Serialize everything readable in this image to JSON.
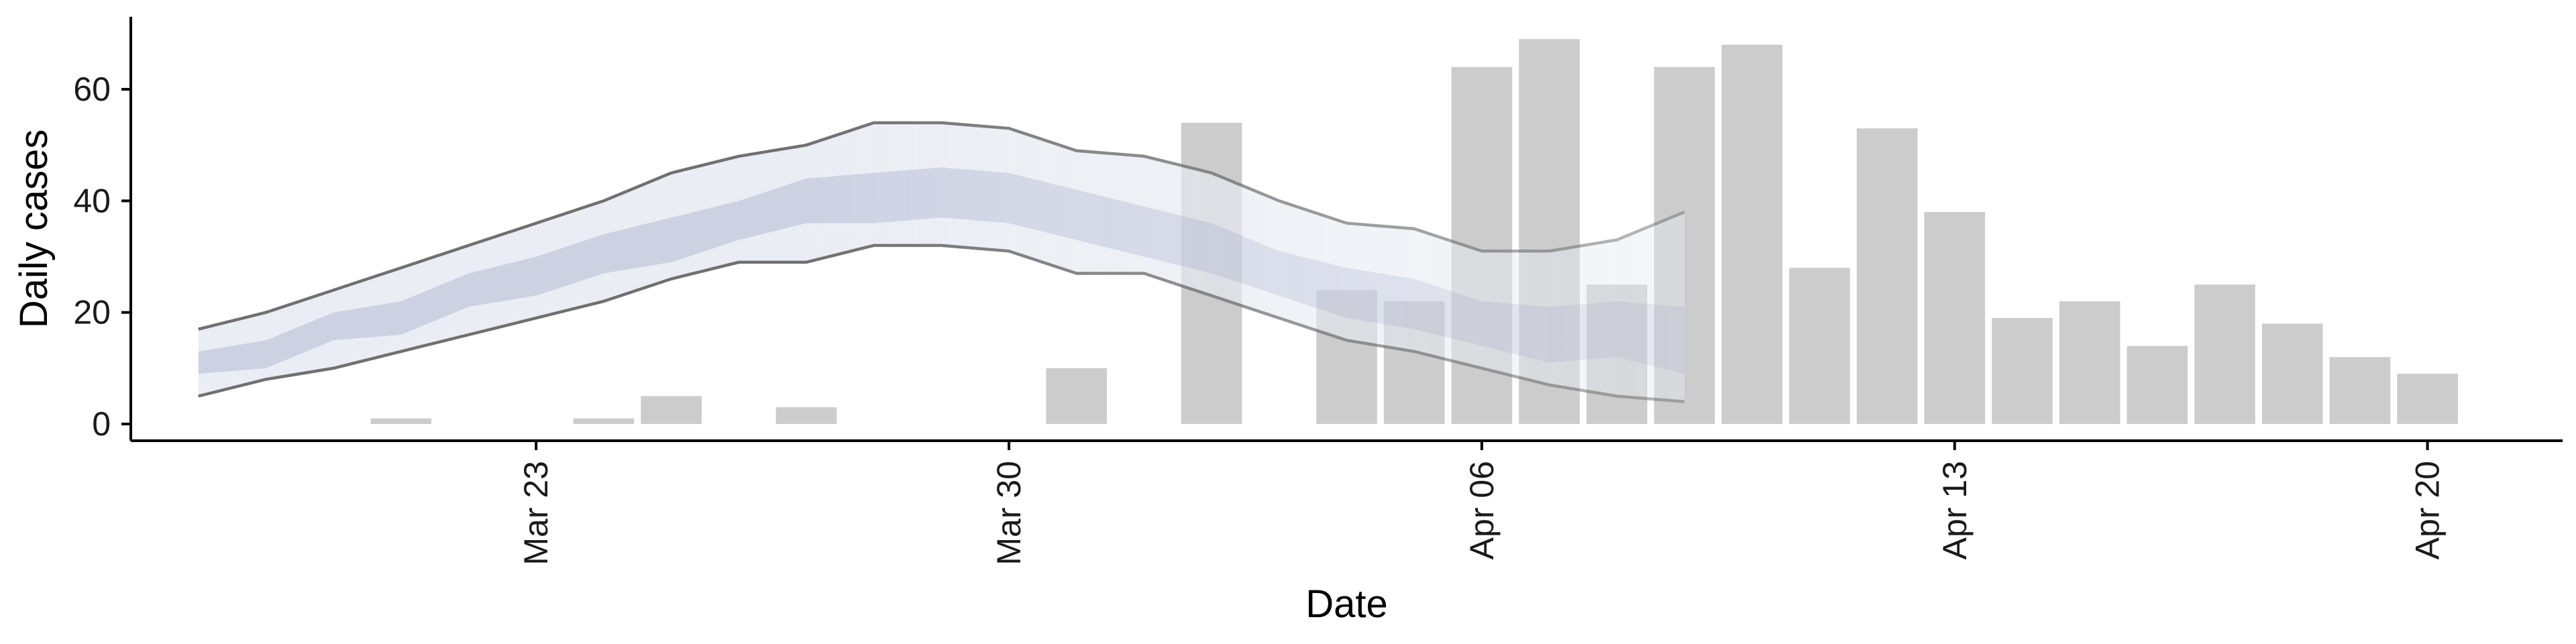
{
  "chart_data": {
    "type": "bar",
    "xlabel": "Date",
    "ylabel": "Daily cases",
    "ylim": [
      -3,
      73
    ],
    "yticks": [
      0,
      20,
      40,
      60
    ],
    "xlim_date": [
      "2020-03-17",
      "2020-04-22"
    ],
    "xticks": [
      {
        "date": "2020-03-23",
        "label": "Mar 23"
      },
      {
        "date": "2020-03-30",
        "label": "Mar 30"
      },
      {
        "date": "2020-04-06",
        "label": "Apr 06"
      },
      {
        "date": "2020-04-13",
        "label": "Apr 13"
      },
      {
        "date": "2020-04-20",
        "label": "Apr 20"
      }
    ],
    "bars": [
      {
        "date": "2020-03-21",
        "value": 1
      },
      {
        "date": "2020-03-24",
        "value": 1
      },
      {
        "date": "2020-03-25",
        "value": 5
      },
      {
        "date": "2020-03-27",
        "value": 3
      },
      {
        "date": "2020-03-31",
        "value": 10
      },
      {
        "date": "2020-04-02",
        "value": 54
      },
      {
        "date": "2020-04-04",
        "value": 24
      },
      {
        "date": "2020-04-05",
        "value": 22
      },
      {
        "date": "2020-04-06",
        "value": 64
      },
      {
        "date": "2020-04-07",
        "value": 69
      },
      {
        "date": "2020-04-08",
        "value": 25
      },
      {
        "date": "2020-04-09",
        "value": 64
      },
      {
        "date": "2020-04-10",
        "value": 68
      },
      {
        "date": "2020-04-11",
        "value": 28
      },
      {
        "date": "2020-04-12",
        "value": 53
      },
      {
        "date": "2020-04-13",
        "value": 38
      },
      {
        "date": "2020-04-14",
        "value": 19
      },
      {
        "date": "2020-04-15",
        "value": 22
      },
      {
        "date": "2020-04-16",
        "value": 14
      },
      {
        "date": "2020-04-17",
        "value": 25
      },
      {
        "date": "2020-04-18",
        "value": 18
      },
      {
        "date": "2020-04-19",
        "value": 12
      },
      {
        "date": "2020-04-20",
        "value": 9
      }
    ],
    "bands": {
      "dates": [
        "2020-03-18",
        "2020-03-19",
        "2020-03-20",
        "2020-03-21",
        "2020-03-22",
        "2020-03-23",
        "2020-03-24",
        "2020-03-25",
        "2020-03-26",
        "2020-03-27",
        "2020-03-28",
        "2020-03-29",
        "2020-03-30",
        "2020-03-31",
        "2020-04-01",
        "2020-04-02",
        "2020-04-03",
        "2020-04-04",
        "2020-04-05",
        "2020-04-06",
        "2020-04-07",
        "2020-04-08",
        "2020-04-09",
        "2020-04-10",
        "2020-04-11"
      ],
      "outer_upper": [
        17,
        20,
        24,
        28,
        32,
        36,
        40,
        45,
        48,
        50,
        54,
        54,
        53,
        49,
        48,
        45,
        40,
        36,
        35,
        31,
        31,
        33,
        38,
        null,
        null
      ],
      "outer_lower": [
        5,
        8,
        10,
        13,
        16,
        19,
        22,
        26,
        29,
        29,
        32,
        32,
        31,
        27,
        27,
        23,
        19,
        15,
        13,
        10,
        7,
        5,
        4,
        null,
        null
      ],
      "inner_upper": [
        13,
        15,
        20,
        22,
        27,
        30,
        34,
        37,
        40,
        44,
        45,
        46,
        45,
        42,
        39,
        36,
        31,
        28,
        26,
        22,
        21,
        22,
        21,
        null,
        null
      ],
      "inner_lower": [
        9,
        10,
        15,
        16,
        21,
        23,
        27,
        29,
        33,
        36,
        36,
        37,
        36,
        33,
        30,
        27,
        23,
        19,
        17,
        14,
        11,
        12,
        9,
        null,
        null
      ]
    },
    "colors": {
      "bars": "#cccccc",
      "outer_band": "#e8eaf2",
      "inner_band": "#c3c9dd",
      "band_lines": "#707070",
      "axis": "#000000"
    }
  }
}
